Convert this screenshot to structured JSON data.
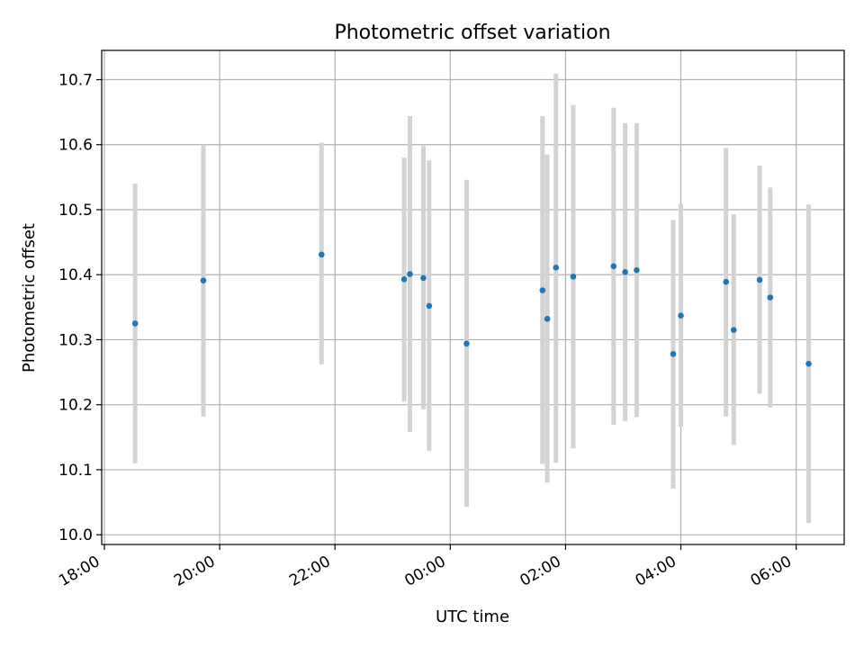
{
  "chart_data": {
    "type": "scatter",
    "title": "Photometric offset variation",
    "xlabel": "UTC time",
    "ylabel": "Photometric offset",
    "x_axis": {
      "type": "time",
      "start": "18:00",
      "end": "06:50",
      "tick_labels": [
        "18:00",
        "20:00",
        "22:00",
        "00:00",
        "02:00",
        "04:00",
        "06:00"
      ]
    },
    "y_axis": {
      "ylim": [
        9.985,
        10.745
      ],
      "tick_labels": [
        "10.0",
        "10.1",
        "10.2",
        "10.3",
        "10.4",
        "10.5",
        "10.6",
        "10.7"
      ]
    },
    "grid": true,
    "colors": {
      "points": "#1f77b4",
      "error_bars": "#d3d3d3",
      "grid": "#b0b0b0",
      "axes": "#000000"
    },
    "series": [
      {
        "points": [
          {
            "x": "18:32",
            "y": 10.325,
            "low": 10.11,
            "high": 10.54
          },
          {
            "x": "19:43",
            "y": 10.391,
            "low": 10.182,
            "high": 10.6
          },
          {
            "x": "21:46",
            "y": 10.431,
            "low": 10.262,
            "high": 10.603
          },
          {
            "x": "23:12",
            "y": 10.393,
            "low": 10.205,
            "high": 10.58
          },
          {
            "x": "23:18",
            "y": 10.401,
            "low": 10.158,
            "high": 10.644
          },
          {
            "x": "23:32",
            "y": 10.395,
            "low": 10.193,
            "high": 10.598
          },
          {
            "x": "23:38",
            "y": 10.352,
            "low": 10.129,
            "high": 10.576
          },
          {
            "x": "00:17",
            "y": 10.294,
            "low": 10.043,
            "high": 10.546
          },
          {
            "x": "01:36",
            "y": 10.376,
            "low": 10.109,
            "high": 10.644
          },
          {
            "x": "01:41",
            "y": 10.332,
            "low": 10.08,
            "high": 10.585
          },
          {
            "x": "01:50",
            "y": 10.411,
            "low": 10.111,
            "high": 10.709
          },
          {
            "x": "02:08",
            "y": 10.397,
            "low": 10.133,
            "high": 10.661
          },
          {
            "x": "02:50",
            "y": 10.413,
            "low": 10.169,
            "high": 10.657
          },
          {
            "x": "03:02",
            "y": 10.404,
            "low": 10.175,
            "high": 10.633
          },
          {
            "x": "03:14",
            "y": 10.407,
            "low": 10.181,
            "high": 10.633
          },
          {
            "x": "03:52",
            "y": 10.278,
            "low": 10.071,
            "high": 10.484
          },
          {
            "x": "04:00",
            "y": 10.337,
            "low": 10.166,
            "high": 10.509
          },
          {
            "x": "04:47",
            "y": 10.389,
            "low": 10.182,
            "high": 10.595
          },
          {
            "x": "04:55",
            "y": 10.315,
            "low": 10.138,
            "high": 10.493
          },
          {
            "x": "05:22",
            "y": 10.392,
            "low": 10.217,
            "high": 10.568
          },
          {
            "x": "05:33",
            "y": 10.365,
            "low": 10.196,
            "high": 10.534
          },
          {
            "x": "06:13",
            "y": 10.263,
            "low": 10.018,
            "high": 10.508
          }
        ]
      }
    ]
  }
}
